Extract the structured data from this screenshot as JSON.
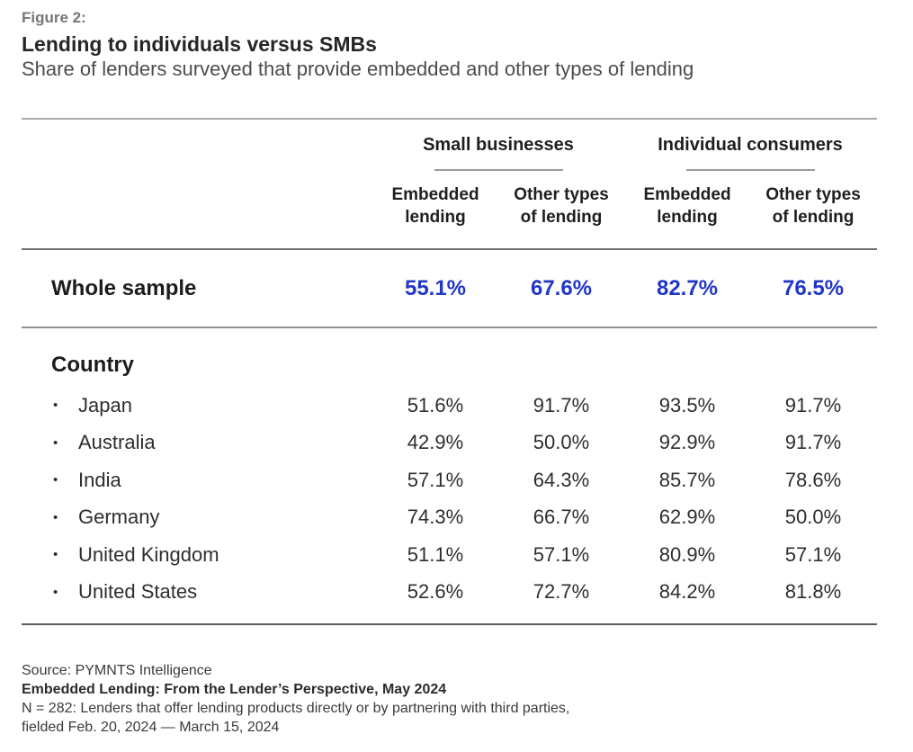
{
  "figure": {
    "label": "Figure 2:",
    "title": "Lending to individuals versus SMBs",
    "subtitle": "Share of lenders surveyed that provide embedded and other types of lending"
  },
  "table": {
    "group_headers": [
      {
        "label": "Small businesses"
      },
      {
        "label": "Individual consumers"
      }
    ],
    "column_headers": [
      "Embedded\nlending",
      "Other types\nof lending",
      "Embedded\nlending",
      "Other types\nof lending"
    ],
    "whole_sample": {
      "label": "Whole sample",
      "values": [
        "55.1%",
        "67.6%",
        "82.7%",
        "76.5%"
      ]
    },
    "section_label": "Country",
    "rows": [
      {
        "label": "Japan",
        "values": [
          "51.6%",
          "91.7%",
          "93.5%",
          "91.7%"
        ]
      },
      {
        "label": "Australia",
        "values": [
          "42.9%",
          "50.0%",
          "92.9%",
          "91.7%"
        ]
      },
      {
        "label": "India",
        "values": [
          "57.1%",
          "64.3%",
          "85.7%",
          "78.6%"
        ]
      },
      {
        "label": "Germany",
        "values": [
          "74.3%",
          "66.7%",
          "62.9%",
          "50.0%"
        ]
      },
      {
        "label": "United Kingdom",
        "values": [
          "51.1%",
          "57.1%",
          "80.9%",
          "57.1%"
        ]
      },
      {
        "label": "United States",
        "values": [
          "52.6%",
          "72.7%",
          "84.2%",
          "81.8%"
        ]
      }
    ]
  },
  "icons": {
    "bullet": "•"
  },
  "footer": {
    "source": "Source: PYMNTS Intelligence",
    "report_title": "Embedded Lending: From the Lender’s Perspective, May 2024",
    "note_line1": "N = 282: Lenders that offer lending products directly or by partnering with third parties,",
    "note_line2": "fielded Feb. 20, 2024 — March 15, 2024"
  },
  "colors": {
    "accent_blue": "#2136c8",
    "heading_dark": "#262626",
    "muted_gray": "#767676",
    "rule_gray": "#9b9b9b"
  },
  "chart_data": {
    "type": "table",
    "title": "Lending to individuals versus SMBs",
    "subtitle": "Share of lenders surveyed that provide embedded and other types of lending",
    "column_groups": [
      "Small businesses",
      "Individual consumers"
    ],
    "columns": [
      "Small businesses — Embedded lending",
      "Small businesses — Other types of lending",
      "Individual consumers — Embedded lending",
      "Individual consumers — Other types of lending"
    ],
    "rows": [
      {
        "label": "Whole sample",
        "values_pct": [
          55.1,
          67.6,
          82.7,
          76.5
        ]
      },
      {
        "label": "Japan",
        "values_pct": [
          51.6,
          91.7,
          93.5,
          91.7
        ]
      },
      {
        "label": "Australia",
        "values_pct": [
          42.9,
          50.0,
          92.9,
          91.7
        ]
      },
      {
        "label": "India",
        "values_pct": [
          57.1,
          64.3,
          85.7,
          78.6
        ]
      },
      {
        "label": "Germany",
        "values_pct": [
          74.3,
          66.7,
          62.9,
          50.0
        ]
      },
      {
        "label": "United Kingdom",
        "values_pct": [
          51.1,
          57.1,
          80.9,
          57.1
        ]
      },
      {
        "label": "United States",
        "values_pct": [
          52.6,
          72.7,
          84.2,
          81.8
        ]
      }
    ],
    "sample_note": "N = 282, fielded Feb. 20, 2024 — March 15, 2024",
    "source": "PYMNTS Intelligence"
  }
}
